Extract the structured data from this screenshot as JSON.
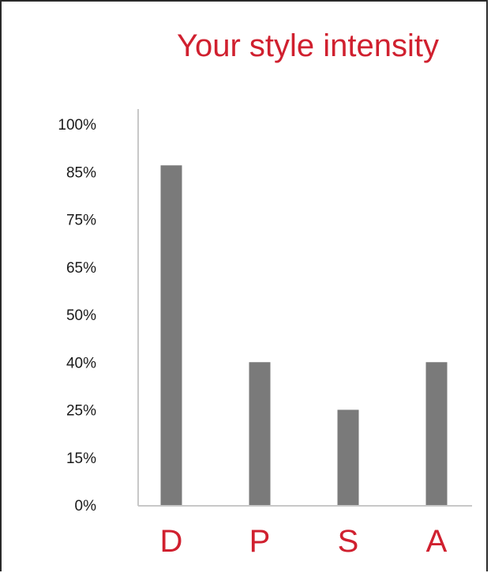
{
  "chart_data": {
    "type": "bar",
    "title": "Your style intensity",
    "categories": [
      "D",
      "P",
      "S",
      "A"
    ],
    "values": [
      87,
      40,
      25,
      40
    ],
    "y_tick_labels": [
      "0%",
      "15%",
      "25%",
      "40%",
      "50%",
      "65%",
      "75%",
      "85%",
      "100%"
    ],
    "ylim": [
      0,
      100
    ],
    "grid": false,
    "legend": "none",
    "colors": {
      "bar": "#7a7a7a",
      "title": "#d0202f",
      "category_labels": "#d0202f",
      "axis": "#c8c8c8"
    }
  }
}
